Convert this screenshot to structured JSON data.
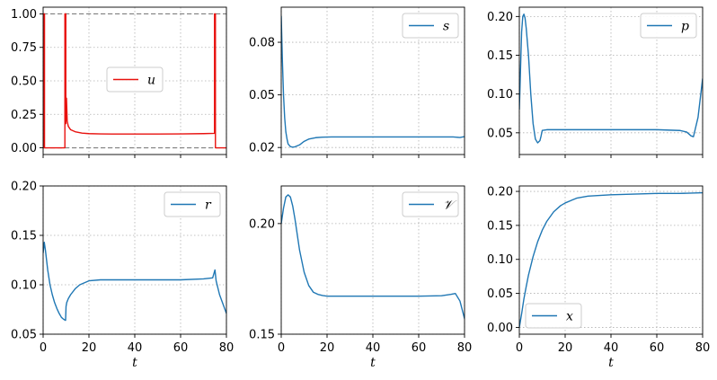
{
  "chart_data": [
    {
      "type": "line",
      "panel": "u",
      "legend": "u",
      "legend_loc": "center",
      "color": "#e8120f",
      "xlabel": "",
      "xlim": [
        0,
        80
      ],
      "ylim": [
        -0.05,
        1.05
      ],
      "xticks": [
        0,
        20,
        40,
        60,
        80
      ],
      "xticklabels": [
        "",
        "",
        "",
        "",
        ""
      ],
      "yticks": [
        0,
        0.25,
        0.5,
        0.75,
        1.0
      ],
      "yticklabels": [
        "0.00",
        "0.25",
        "0.50",
        "0.75",
        "1.00"
      ],
      "hlines": [
        0,
        1
      ],
      "grid": true,
      "x": [
        0,
        0.3,
        0.3,
        0.6,
        0.6,
        9.5,
        9.5,
        9.9,
        9.9,
        10.2,
        10.5,
        11,
        12,
        14,
        17,
        20,
        25,
        30,
        40,
        50,
        60,
        70,
        74.8,
        74.8,
        75.2,
        75.2,
        80
      ],
      "y": [
        0,
        0,
        1,
        1,
        0,
        0,
        1,
        1,
        0.18,
        0.37,
        0.2,
        0.16,
        0.135,
        0.12,
        0.11,
        0.106,
        0.104,
        0.103,
        0.103,
        0.103,
        0.104,
        0.106,
        0.108,
        1,
        1,
        0,
        0
      ]
    },
    {
      "type": "line",
      "panel": "s",
      "legend": "s",
      "legend_loc": "upper right",
      "color": "#1f77b4",
      "xlabel": "",
      "xlim": [
        0,
        80
      ],
      "ylim": [
        0.016,
        0.1
      ],
      "xticks": [
        0,
        20,
        40,
        60,
        80
      ],
      "xticklabels": [
        "",
        "",
        "",
        "",
        ""
      ],
      "yticks": [
        0.02,
        0.05,
        0.08
      ],
      "yticklabels": [
        "0.02",
        "0.05",
        "0.08"
      ],
      "grid": true,
      "x": [
        0,
        0.5,
        1,
        1.5,
        2,
        2.5,
        3,
        4,
        5,
        6,
        8,
        10,
        12,
        15,
        18,
        22,
        30,
        40,
        50,
        60,
        70,
        75,
        78,
        80
      ],
      "y": [
        0.095,
        0.07,
        0.05,
        0.037,
        0.029,
        0.025,
        0.022,
        0.0205,
        0.0202,
        0.0204,
        0.0215,
        0.0235,
        0.0248,
        0.0256,
        0.0259,
        0.026,
        0.026,
        0.026,
        0.026,
        0.026,
        0.026,
        0.026,
        0.0257,
        0.0262
      ]
    },
    {
      "type": "line",
      "panel": "p",
      "legend": "p",
      "legend_loc": "upper right",
      "color": "#1f77b4",
      "xlabel": "",
      "xlim": [
        0,
        80
      ],
      "ylim": [
        0.022,
        0.212
      ],
      "xticks": [
        0,
        20,
        40,
        60,
        80
      ],
      "xticklabels": [
        "",
        "",
        "",
        "",
        ""
      ],
      "yticks": [
        0.05,
        0.1,
        0.15,
        0.2
      ],
      "yticklabels": [
        "0.05",
        "0.10",
        "0.15",
        "0.20"
      ],
      "grid": true,
      "x": [
        0,
        0.5,
        1,
        1.5,
        2,
        2.5,
        3,
        4,
        5,
        6,
        7,
        8,
        9,
        9.5,
        10,
        12,
        20,
        40,
        60,
        70,
        73,
        75,
        76,
        78,
        80
      ],
      "y": [
        0.08,
        0.13,
        0.18,
        0.2,
        0.203,
        0.198,
        0.185,
        0.15,
        0.1,
        0.062,
        0.042,
        0.037,
        0.04,
        0.046,
        0.053,
        0.054,
        0.054,
        0.054,
        0.054,
        0.053,
        0.051,
        0.046,
        0.045,
        0.07,
        0.12
      ]
    },
    {
      "type": "line",
      "panel": "r",
      "legend": "r",
      "legend_loc": "upper right",
      "color": "#1f77b4",
      "xlabel": "t",
      "xlim": [
        0,
        80
      ],
      "ylim": [
        0.05,
        0.2
      ],
      "xticks": [
        0,
        20,
        40,
        60,
        80
      ],
      "xticklabels": [
        "0",
        "20",
        "40",
        "60",
        "80"
      ],
      "yticks": [
        0.05,
        0.1,
        0.15,
        0.2
      ],
      "yticklabels": [
        "0.05",
        "0.10",
        "0.15",
        "0.20"
      ],
      "grid": true,
      "x": [
        0,
        0.5,
        1,
        2,
        3,
        4,
        5,
        6,
        7,
        8,
        9,
        9.8,
        10,
        10.3,
        11,
        12,
        14,
        16,
        20,
        25,
        30,
        40,
        50,
        60,
        70,
        74,
        75,
        75.5,
        77,
        80
      ],
      "y": [
        0.132,
        0.143,
        0.135,
        0.115,
        0.1,
        0.09,
        0.082,
        0.076,
        0.071,
        0.067,
        0.065,
        0.064,
        0.078,
        0.082,
        0.086,
        0.09,
        0.096,
        0.1,
        0.104,
        0.105,
        0.105,
        0.105,
        0.105,
        0.105,
        0.106,
        0.107,
        0.115,
        0.104,
        0.09,
        0.071
      ]
    },
    {
      "type": "line",
      "panel": "V",
      "legend": "𝒱",
      "legend_loc": "upper right",
      "color": "#1f77b4",
      "xlabel": "t",
      "xlim": [
        0,
        80
      ],
      "ylim": [
        0.15,
        0.217
      ],
      "xticks": [
        0,
        20,
        40,
        60,
        80
      ],
      "xticklabels": [
        "0",
        "20",
        "40",
        "60",
        "80"
      ],
      "yticks": [
        0.15,
        0.2
      ],
      "yticklabels": [
        "0.15",
        "0.20"
      ],
      "grid": true,
      "x": [
        0,
        1,
        2,
        3,
        4,
        5,
        6,
        8,
        10,
        12,
        14,
        16,
        18,
        20,
        25,
        30,
        40,
        50,
        60,
        70,
        74,
        76,
        78,
        80
      ],
      "y": [
        0.2,
        0.207,
        0.212,
        0.213,
        0.212,
        0.208,
        0.202,
        0.188,
        0.178,
        0.172,
        0.169,
        0.168,
        0.1675,
        0.1672,
        0.1672,
        0.1672,
        0.1672,
        0.1672,
        0.1672,
        0.1674,
        0.168,
        0.1684,
        0.165,
        0.157
      ]
    },
    {
      "type": "line",
      "panel": "x",
      "legend": "x",
      "legend_loc": "lower left",
      "color": "#1f77b4",
      "xlabel": "t",
      "xlim": [
        0,
        80
      ],
      "ylim": [
        -0.01,
        0.208
      ],
      "xticks": [
        0,
        20,
        40,
        60,
        80
      ],
      "xticklabels": [
        "0",
        "20",
        "40",
        "60",
        "80"
      ],
      "yticks": [
        0,
        0.05,
        0.1,
        0.15,
        0.2
      ],
      "yticklabels": [
        "0.00",
        "0.05",
        "0.10",
        "0.15",
        "0.20"
      ],
      "grid": true,
      "x": [
        0,
        1,
        2,
        3,
        4,
        6,
        8,
        10,
        12,
        15,
        18,
        20,
        25,
        30,
        40,
        50,
        60,
        70,
        80
      ],
      "y": [
        0,
        0.02,
        0.042,
        0.06,
        0.077,
        0.104,
        0.126,
        0.143,
        0.156,
        0.17,
        0.179,
        0.183,
        0.19,
        0.193,
        0.195,
        0.196,
        0.197,
        0.197,
        0.198
      ]
    }
  ]
}
